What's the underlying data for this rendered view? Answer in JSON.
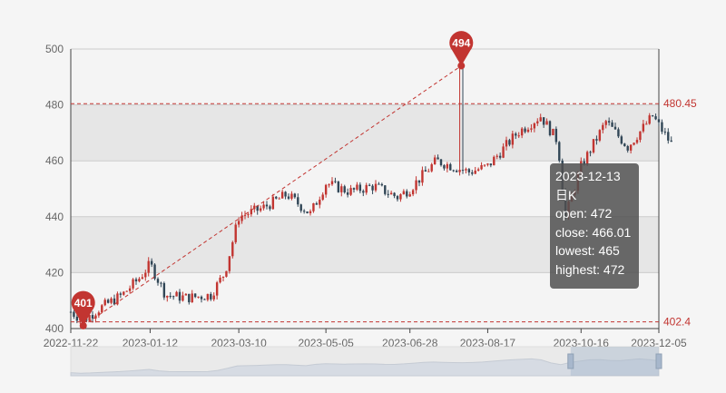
{
  "chart_data": {
    "type": "candlestick",
    "x_tick_labels": [
      "2022-11-22",
      "2023-01-12",
      "2023-03-10",
      "2023-05-05",
      "2023-06-28",
      "2023-08-17",
      "2023-10-16",
      "2023-12-05"
    ],
    "y_tick_labels": [
      "400",
      "420",
      "440",
      "460",
      "480",
      "500"
    ],
    "ylim": [
      400,
      500
    ],
    "grid": true,
    "banded_background": true,
    "up_color": "#c23531",
    "down_color": "#314656",
    "mark_points": [
      {
        "label": "494",
        "value": 494,
        "date": "2023-07-31",
        "type": "max"
      },
      {
        "label": "401",
        "value": 401,
        "date": "2022-11-30",
        "type": "min"
      }
    ],
    "mark_lines": [
      {
        "label": "480.45",
        "value": 480.45
      },
      {
        "label": "402.4",
        "value": 402.4
      }
    ],
    "trend_line": {
      "from": {
        "date": "2022-11-30",
        "value": 401
      },
      "to": {
        "date": "2023-07-31",
        "value": 494
      }
    },
    "price_path": [
      {
        "date": "2022-11-22",
        "value": 406
      },
      {
        "date": "2022-11-30",
        "value": 403
      },
      {
        "date": "2022-12-10",
        "value": 407
      },
      {
        "date": "2022-12-25",
        "value": 412
      },
      {
        "date": "2023-01-05",
        "value": 418
      },
      {
        "date": "2023-01-12",
        "value": 423
      },
      {
        "date": "2023-01-22",
        "value": 412
      },
      {
        "date": "2023-02-05",
        "value": 411
      },
      {
        "date": "2023-02-20",
        "value": 412
      },
      {
        "date": "2023-03-01",
        "value": 420
      },
      {
        "date": "2023-03-10",
        "value": 440
      },
      {
        "date": "2023-03-25",
        "value": 443
      },
      {
        "date": "2023-04-10",
        "value": 448
      },
      {
        "date": "2023-04-25",
        "value": 441
      },
      {
        "date": "2023-05-05",
        "value": 452
      },
      {
        "date": "2023-05-20",
        "value": 449
      },
      {
        "date": "2023-06-05",
        "value": 451
      },
      {
        "date": "2023-06-20",
        "value": 447
      },
      {
        "date": "2023-06-28",
        "value": 450
      },
      {
        "date": "2023-07-15",
        "value": 460
      },
      {
        "date": "2023-08-05",
        "value": 456
      },
      {
        "date": "2023-08-17",
        "value": 458
      },
      {
        "date": "2023-09-05",
        "value": 470
      },
      {
        "date": "2023-09-20",
        "value": 476
      },
      {
        "date": "2023-10-01",
        "value": 467
      },
      {
        "date": "2023-10-06",
        "value": 440
      },
      {
        "date": "2023-10-16",
        "value": 458
      },
      {
        "date": "2023-11-01",
        "value": 474
      },
      {
        "date": "2023-11-15",
        "value": 465
      },
      {
        "date": "2023-12-01",
        "value": 476
      },
      {
        "date": "2023-12-13",
        "value": 466
      }
    ],
    "tooltip": {
      "date": "2023-12-13",
      "series": "日K",
      "open_label": "open: 472",
      "close_label": "close: 466.01",
      "lowest_label": "lowest: 465",
      "highest_label": "highest: 472"
    },
    "data_zoom": {
      "start_fraction": 0.85,
      "end_fraction": 1.0
    }
  }
}
